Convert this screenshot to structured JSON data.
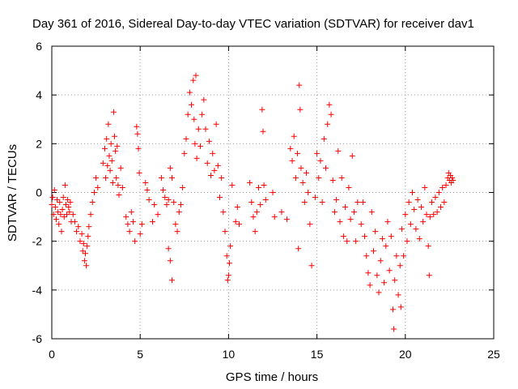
{
  "chart_data": {
    "type": "scatter",
    "title": "Day 361 of 2016, Sidereal Day-to-day VTEC variation (SDTVAR) for receiver dav1",
    "xlabel": "GPS time / hours",
    "ylabel": "SDTVAR / TECUs",
    "xlim": [
      0,
      25
    ],
    "ylim": [
      -6,
      6
    ],
    "xticks": [
      0,
      5,
      10,
      15,
      20,
      25
    ],
    "yticks": [
      -6,
      -4,
      -2,
      0,
      2,
      4,
      6
    ],
    "grid": true,
    "marker": "+",
    "marker_color": "#ff0000",
    "series": [
      {
        "name": "SDTVAR",
        "points": [
          [
            0.0,
            -0.5
          ],
          [
            0.05,
            -0.2
          ],
          [
            0.1,
            -0.9
          ],
          [
            0.15,
            0.1
          ],
          [
            0.2,
            -0.6
          ],
          [
            0.25,
            -1.1
          ],
          [
            0.3,
            -0.3
          ],
          [
            0.35,
            -0.8
          ],
          [
            0.4,
            -1.3
          ],
          [
            0.45,
            -0.4
          ],
          [
            0.5,
            -0.9
          ],
          [
            0.55,
            -1.6
          ],
          [
            0.6,
            -0.7
          ],
          [
            0.65,
            -0.2
          ],
          [
            0.7,
            -1.0
          ],
          [
            0.75,
            0.3
          ],
          [
            0.8,
            -0.5
          ],
          [
            0.85,
            -0.9
          ],
          [
            0.9,
            -0.3
          ],
          [
            0.95,
            -0.6
          ],
          [
            1.0,
            -0.8
          ],
          [
            1.05,
            -0.4
          ],
          [
            1.1,
            -1.2
          ],
          [
            1.2,
            -0.9
          ],
          [
            1.3,
            -1.2
          ],
          [
            1.4,
            -1.6
          ],
          [
            1.5,
            -1.4
          ],
          [
            1.6,
            -2.0
          ],
          [
            1.7,
            -1.7
          ],
          [
            1.75,
            -2.4
          ],
          [
            1.8,
            -2.1
          ],
          [
            1.85,
            -2.8
          ],
          [
            1.9,
            -2.5
          ],
          [
            1.95,
            -3.0
          ],
          [
            2.0,
            -2.2
          ],
          [
            2.05,
            -1.8
          ],
          [
            2.1,
            -1.4
          ],
          [
            2.2,
            -0.9
          ],
          [
            2.3,
            -0.4
          ],
          [
            2.4,
            0.0
          ],
          [
            2.5,
            0.6
          ],
          [
            2.6,
            0.2
          ],
          [
            2.9,
            1.2
          ],
          [
            3.0,
            1.8
          ],
          [
            3.05,
            0.6
          ],
          [
            3.1,
            2.2
          ],
          [
            3.15,
            1.1
          ],
          [
            3.2,
            2.8
          ],
          [
            3.25,
            1.5
          ],
          [
            3.3,
            0.9
          ],
          [
            3.35,
            2.0
          ],
          [
            3.4,
            1.3
          ],
          [
            3.45,
            0.4
          ],
          [
            3.5,
            3.3
          ],
          [
            3.55,
            2.3
          ],
          [
            3.6,
            1.7
          ],
          [
            3.65,
            0.6
          ],
          [
            3.7,
            1.9
          ],
          [
            3.75,
            0.3
          ],
          [
            3.8,
            -0.1
          ],
          [
            3.9,
            1.0
          ],
          [
            4.0,
            0.2
          ],
          [
            4.2,
            -1.0
          ],
          [
            4.3,
            -1.3
          ],
          [
            4.4,
            -1.6
          ],
          [
            4.5,
            -0.8
          ],
          [
            4.6,
            -1.2
          ],
          [
            4.7,
            -2.0
          ],
          [
            4.8,
            2.7
          ],
          [
            4.85,
            2.4
          ],
          [
            4.9,
            1.8
          ],
          [
            4.95,
            0.8
          ],
          [
            5.0,
            -1.7
          ],
          [
            5.1,
            -1.3
          ],
          [
            5.3,
            0.4
          ],
          [
            5.4,
            0.1
          ],
          [
            5.5,
            -0.3
          ],
          [
            5.7,
            -1.2
          ],
          [
            5.8,
            -0.5
          ],
          [
            6.0,
            -0.9
          ],
          [
            6.2,
            0.6
          ],
          [
            6.3,
            0.1
          ],
          [
            6.4,
            -0.2
          ],
          [
            6.5,
            -0.5
          ],
          [
            6.6,
            -0.3
          ],
          [
            6.7,
            1.0
          ],
          [
            6.8,
            0.6
          ],
          [
            6.9,
            -0.4
          ],
          [
            7.0,
            -1.3
          ],
          [
            7.1,
            -1.6
          ],
          [
            7.2,
            -0.8
          ],
          [
            7.3,
            -0.5
          ],
          [
            7.4,
            0.2
          ],
          [
            7.5,
            1.6
          ],
          [
            7.6,
            2.2
          ],
          [
            7.7,
            3.2
          ],
          [
            7.8,
            4.1
          ],
          [
            7.9,
            3.6
          ],
          [
            8.0,
            4.6
          ],
          [
            8.05,
            3.0
          ],
          [
            8.1,
            2.0
          ],
          [
            8.15,
            4.8
          ],
          [
            8.2,
            1.4
          ],
          [
            8.3,
            2.6
          ],
          [
            8.4,
            1.9
          ],
          [
            8.5,
            3.2
          ],
          [
            8.6,
            3.8
          ],
          [
            8.7,
            2.6
          ],
          [
            8.8,
            1.2
          ],
          [
            8.9,
            2.1
          ],
          [
            9.0,
            0.7
          ],
          [
            9.1,
            1.6
          ],
          [
            9.2,
            0.9
          ],
          [
            9.3,
            2.8
          ],
          [
            9.4,
            1.1
          ],
          [
            9.5,
            -0.2
          ],
          [
            9.6,
            0.6
          ],
          [
            9.7,
            -0.8
          ],
          [
            9.8,
            -1.6
          ],
          [
            9.9,
            -2.6
          ],
          [
            9.95,
            -3.6
          ],
          [
            10.0,
            -3.4
          ],
          [
            10.05,
            -2.9
          ],
          [
            10.1,
            -2.2
          ],
          [
            10.2,
            0.3
          ],
          [
            6.6,
            -2.3
          ],
          [
            6.7,
            -2.8
          ],
          [
            6.8,
            -3.6
          ],
          [
            10.4,
            -1.2
          ],
          [
            10.5,
            -0.6
          ],
          [
            10.6,
            -1.3
          ],
          [
            11.2,
            0.4
          ],
          [
            11.3,
            -0.4
          ],
          [
            11.4,
            -1.0
          ],
          [
            11.5,
            -1.6
          ],
          [
            11.6,
            -0.8
          ],
          [
            11.7,
            0.2
          ],
          [
            11.8,
            -0.5
          ],
          [
            11.9,
            3.4
          ],
          [
            11.95,
            2.5
          ],
          [
            12.0,
            0.3
          ],
          [
            12.1,
            -0.3
          ],
          [
            12.5,
            0.0
          ],
          [
            12.6,
            -1.0
          ],
          [
            13.0,
            -0.8
          ],
          [
            13.3,
            -1.1
          ],
          [
            13.5,
            1.8
          ],
          [
            13.6,
            1.3
          ],
          [
            13.7,
            2.3
          ],
          [
            13.8,
            0.6
          ],
          [
            13.9,
            1.6
          ],
          [
            13.95,
            -2.3
          ],
          [
            14.0,
            4.4
          ],
          [
            14.05,
            3.4
          ],
          [
            14.1,
            1.0
          ],
          [
            14.2,
            0.4
          ],
          [
            14.3,
            -0.4
          ],
          [
            14.4,
            0.8
          ],
          [
            14.5,
            0.0
          ],
          [
            14.6,
            -1.3
          ],
          [
            14.7,
            -3.0
          ],
          [
            14.9,
            -0.2
          ],
          [
            15.0,
            1.6
          ],
          [
            15.1,
            0.6
          ],
          [
            15.2,
            1.3
          ],
          [
            15.3,
            -0.4
          ],
          [
            15.4,
            2.2
          ],
          [
            15.5,
            1.0
          ],
          [
            15.6,
            2.8
          ],
          [
            15.7,
            3.6
          ],
          [
            15.8,
            3.2
          ],
          [
            15.9,
            0.5
          ],
          [
            16.0,
            -0.8
          ],
          [
            16.1,
            -0.3
          ],
          [
            16.2,
            1.7
          ],
          [
            16.3,
            -1.2
          ],
          [
            16.4,
            0.6
          ],
          [
            16.5,
            -1.8
          ],
          [
            16.6,
            -0.6
          ],
          [
            16.7,
            -2.0
          ],
          [
            16.8,
            0.2
          ],
          [
            16.9,
            -1.1
          ],
          [
            17.0,
            1.5
          ],
          [
            17.1,
            -0.8
          ],
          [
            17.2,
            -2.0
          ],
          [
            17.3,
            -0.4
          ],
          [
            17.5,
            -1.3
          ],
          [
            17.6,
            -0.4
          ],
          [
            17.7,
            -1.8
          ],
          [
            17.8,
            -2.6
          ],
          [
            17.9,
            -3.3
          ],
          [
            18.0,
            -3.8
          ],
          [
            18.1,
            -0.8
          ],
          [
            18.2,
            -2.4
          ],
          [
            18.3,
            -1.6
          ],
          [
            18.4,
            -3.4
          ],
          [
            18.5,
            -4.1
          ],
          [
            18.6,
            -2.8
          ],
          [
            18.7,
            -1.9
          ],
          [
            18.8,
            -3.7
          ],
          [
            18.9,
            -2.2
          ],
          [
            19.0,
            -1.2
          ],
          [
            19.1,
            -3.2
          ],
          [
            19.2,
            -1.8
          ],
          [
            19.3,
            -4.8
          ],
          [
            19.35,
            -5.6
          ],
          [
            19.4,
            -3.6
          ],
          [
            19.5,
            -2.6
          ],
          [
            19.6,
            -4.2
          ],
          [
            19.7,
            -3.0
          ],
          [
            19.75,
            -4.7
          ],
          [
            19.8,
            -1.5
          ],
          [
            19.9,
            -2.6
          ],
          [
            20.0,
            -0.9
          ],
          [
            20.1,
            -2.0
          ],
          [
            20.2,
            -0.4
          ],
          [
            20.3,
            -1.3
          ],
          [
            20.4,
            0.0
          ],
          [
            20.5,
            -0.7
          ],
          [
            20.6,
            -1.5
          ],
          [
            20.7,
            -0.3
          ],
          [
            20.8,
            -1.9
          ],
          [
            20.9,
            -0.6
          ],
          [
            21.0,
            -1.2
          ],
          [
            21.1,
            0.2
          ],
          [
            21.2,
            -0.9
          ],
          [
            21.3,
            -2.2
          ],
          [
            21.35,
            -3.4
          ],
          [
            21.4,
            -1.0
          ],
          [
            21.5,
            -0.4
          ],
          [
            21.6,
            -0.9
          ],
          [
            21.7,
            -0.2
          ],
          [
            21.8,
            -0.8
          ],
          [
            21.9,
            0.0
          ],
          [
            22.0,
            -0.6
          ],
          [
            22.1,
            0.2
          ],
          [
            22.2,
            -0.4
          ],
          [
            22.3,
            0.3
          ],
          [
            22.4,
            0.6
          ],
          [
            22.45,
            0.8
          ],
          [
            22.5,
            0.5
          ],
          [
            22.55,
            0.7
          ],
          [
            22.6,
            0.4
          ],
          [
            22.65,
            0.6
          ],
          [
            22.7,
            0.5
          ]
        ]
      }
    ]
  }
}
